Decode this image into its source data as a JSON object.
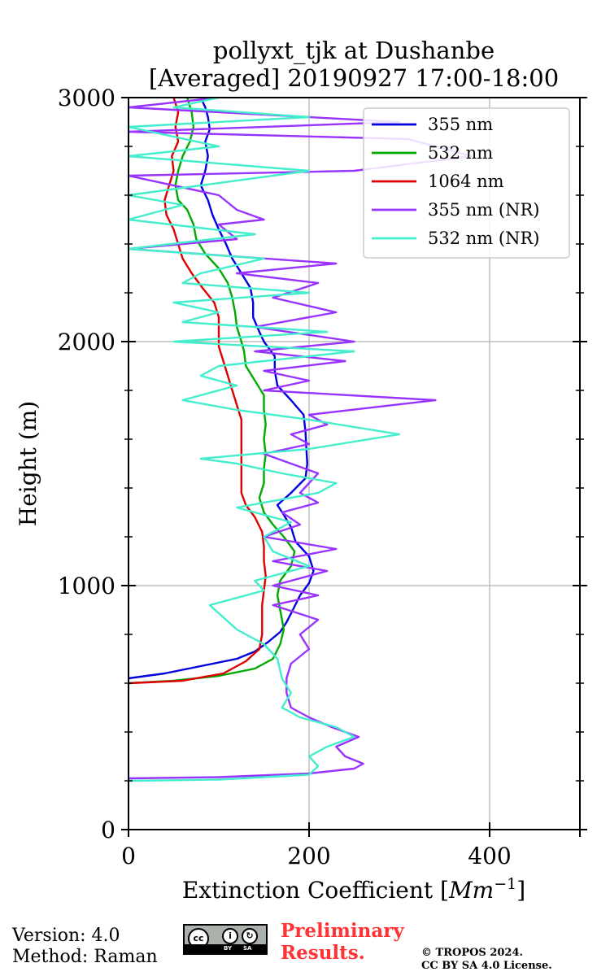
{
  "chart_data": {
    "type": "line",
    "title": "pollyxt_tjk at Dushanbe",
    "subtitle": "[Averaged] 20190927 17:00-18:00",
    "xlabel": "Extinction Coefficient",
    "xlabel_unit": "Mm",
    "xlabel_exp": "−1",
    "ylabel": "Height (m)",
    "xlim": [
      0,
      500
    ],
    "ylim": [
      0,
      3000
    ],
    "xticks": [
      0,
      200,
      400
    ],
    "yticks": [
      0,
      1000,
      2000,
      3000
    ],
    "xtick_labels": [
      "0",
      "200",
      "400"
    ],
    "ytick_labels": [
      "0",
      "1000",
      "2000",
      "3000"
    ],
    "grid": true,
    "legend_position": "top-right",
    "series": [
      {
        "name": "355 nm",
        "color": "#0000dd",
        "points": [
          [
            0,
            620
          ],
          [
            40,
            640
          ],
          [
            80,
            670
          ],
          [
            120,
            700
          ],
          [
            140,
            730
          ],
          [
            155,
            770
          ],
          [
            168,
            810
          ],
          [
            175,
            850
          ],
          [
            182,
            900
          ],
          [
            190,
            960
          ],
          [
            200,
            1010
          ],
          [
            205,
            1060
          ],
          [
            200,
            1120
          ],
          [
            185,
            1180
          ],
          [
            180,
            1240
          ],
          [
            172,
            1290
          ],
          [
            165,
            1330
          ],
          [
            180,
            1380
          ],
          [
            196,
            1440
          ],
          [
            198,
            1500
          ],
          [
            197,
            1560
          ],
          [
            196,
            1630
          ],
          [
            194,
            1700
          ],
          [
            180,
            1760
          ],
          [
            165,
            1820
          ],
          [
            162,
            1880
          ],
          [
            162,
            1940
          ],
          [
            150,
            2000
          ],
          [
            145,
            2040
          ],
          [
            138,
            2100
          ],
          [
            138,
            2160
          ],
          [
            135,
            2220
          ],
          [
            125,
            2280
          ],
          [
            115,
            2340
          ],
          [
            108,
            2400
          ],
          [
            100,
            2460
          ],
          [
            93,
            2520
          ],
          [
            88,
            2580
          ],
          [
            80,
            2640
          ],
          [
            85,
            2700
          ],
          [
            88,
            2760
          ],
          [
            85,
            2820
          ],
          [
            90,
            2870
          ],
          [
            88,
            2920
          ],
          [
            85,
            2960
          ],
          [
            80,
            3000
          ]
        ]
      },
      {
        "name": "532 nm",
        "color": "#00aa00",
        "points": [
          [
            0,
            600
          ],
          [
            50,
            610
          ],
          [
            100,
            630
          ],
          [
            140,
            660
          ],
          [
            160,
            700
          ],
          [
            168,
            760
          ],
          [
            172,
            820
          ],
          [
            168,
            900
          ],
          [
            165,
            960
          ],
          [
            168,
            1020
          ],
          [
            180,
            1080
          ],
          [
            184,
            1140
          ],
          [
            172,
            1200
          ],
          [
            160,
            1250
          ],
          [
            150,
            1300
          ],
          [
            145,
            1360
          ],
          [
            150,
            1420
          ],
          [
            150,
            1480
          ],
          [
            152,
            1540
          ],
          [
            150,
            1600
          ],
          [
            152,
            1660
          ],
          [
            150,
            1720
          ],
          [
            150,
            1780
          ],
          [
            140,
            1840
          ],
          [
            130,
            1900
          ],
          [
            128,
            1960
          ],
          [
            125,
            2000
          ],
          [
            120,
            2060
          ],
          [
            118,
            2120
          ],
          [
            115,
            2180
          ],
          [
            110,
            2240
          ],
          [
            100,
            2300
          ],
          [
            85,
            2360
          ],
          [
            75,
            2420
          ],
          [
            72,
            2480
          ],
          [
            65,
            2540
          ],
          [
            55,
            2580
          ],
          [
            52,
            2640
          ],
          [
            55,
            2700
          ],
          [
            60,
            2760
          ],
          [
            68,
            2820
          ],
          [
            72,
            2880
          ],
          [
            70,
            2940
          ],
          [
            65,
            3000
          ]
        ]
      },
      {
        "name": "1064 nm",
        "color": "#dd0000",
        "points": [
          [
            0,
            600
          ],
          [
            60,
            610
          ],
          [
            105,
            640
          ],
          [
            130,
            690
          ],
          [
            145,
            740
          ],
          [
            148,
            800
          ],
          [
            148,
            860
          ],
          [
            148,
            920
          ],
          [
            150,
            980
          ],
          [
            152,
            1040
          ],
          [
            150,
            1100
          ],
          [
            150,
            1160
          ],
          [
            148,
            1220
          ],
          [
            140,
            1280
          ],
          [
            130,
            1330
          ],
          [
            125,
            1380
          ],
          [
            125,
            1440
          ],
          [
            125,
            1500
          ],
          [
            125,
            1560
          ],
          [
            125,
            1620
          ],
          [
            125,
            1680
          ],
          [
            120,
            1740
          ],
          [
            115,
            1800
          ],
          [
            110,
            1860
          ],
          [
            105,
            1920
          ],
          [
            100,
            1980
          ],
          [
            100,
            2040
          ],
          [
            100,
            2100
          ],
          [
            95,
            2160
          ],
          [
            82,
            2220
          ],
          [
            70,
            2280
          ],
          [
            60,
            2340
          ],
          [
            55,
            2400
          ],
          [
            50,
            2460
          ],
          [
            42,
            2520
          ],
          [
            40,
            2580
          ],
          [
            45,
            2640
          ],
          [
            50,
            2700
          ],
          [
            48,
            2760
          ],
          [
            55,
            2820
          ],
          [
            52,
            2880
          ],
          [
            55,
            2940
          ],
          [
            50,
            3000
          ]
        ]
      },
      {
        "name": "355 nm (NR)",
        "color": "#9933ff",
        "points": [
          [
            0,
            210
          ],
          [
            100,
            215
          ],
          [
            200,
            230
          ],
          [
            250,
            250
          ],
          [
            260,
            270
          ],
          [
            240,
            300
          ],
          [
            230,
            340
          ],
          [
            255,
            380
          ],
          [
            225,
            420
          ],
          [
            200,
            460
          ],
          [
            180,
            500
          ],
          [
            175,
            560
          ],
          [
            175,
            620
          ],
          [
            180,
            680
          ],
          [
            200,
            740
          ],
          [
            190,
            800
          ],
          [
            210,
            860
          ],
          [
            160,
            920
          ],
          [
            210,
            960
          ],
          [
            160,
            1000
          ],
          [
            220,
            1060
          ],
          [
            160,
            1100
          ],
          [
            230,
            1150
          ],
          [
            150,
            1200
          ],
          [
            190,
            1250
          ],
          [
            170,
            1300
          ],
          [
            210,
            1340
          ],
          [
            190,
            1380
          ],
          [
            200,
            1420
          ],
          [
            210,
            1460
          ],
          [
            180,
            1500
          ],
          [
            150,
            1540
          ],
          [
            200,
            1580
          ],
          [
            180,
            1620
          ],
          [
            220,
            1660
          ],
          [
            200,
            1700
          ],
          [
            340,
            1760
          ],
          [
            150,
            1800
          ],
          [
            200,
            1840
          ],
          [
            150,
            1880
          ],
          [
            240,
            1920
          ],
          [
            140,
            1960
          ],
          [
            250,
            2000
          ],
          [
            140,
            2060
          ],
          [
            230,
            2120
          ],
          [
            160,
            2180
          ],
          [
            210,
            2240
          ],
          [
            120,
            2280
          ],
          [
            230,
            2320
          ],
          [
            0,
            2380
          ],
          [
            120,
            2420
          ],
          [
            100,
            2480
          ],
          [
            150,
            2500
          ],
          [
            120,
            2540
          ],
          [
            100,
            2600
          ],
          [
            0,
            2680
          ],
          [
            250,
            2700
          ],
          [
            380,
            2760
          ],
          [
            310,
            2830
          ],
          [
            0,
            2860
          ],
          [
            300,
            2900
          ],
          [
            0,
            2960
          ],
          [
            100,
            3000
          ]
        ]
      },
      {
        "name": "532 nm (NR)",
        "color": "#44eecc",
        "points": [
          [
            0,
            200
          ],
          [
            100,
            205
          ],
          [
            200,
            225
          ],
          [
            210,
            260
          ],
          [
            200,
            300
          ],
          [
            220,
            340
          ],
          [
            250,
            380
          ],
          [
            230,
            420
          ],
          [
            190,
            460
          ],
          [
            170,
            500
          ],
          [
            180,
            560
          ],
          [
            170,
            620
          ],
          [
            165,
            700
          ],
          [
            150,
            760
          ],
          [
            120,
            820
          ],
          [
            90,
            920
          ],
          [
            150,
            980
          ],
          [
            140,
            1020
          ],
          [
            200,
            1080
          ],
          [
            160,
            1140
          ],
          [
            150,
            1200
          ],
          [
            180,
            1260
          ],
          [
            120,
            1320
          ],
          [
            210,
            1380
          ],
          [
            230,
            1420
          ],
          [
            170,
            1460
          ],
          [
            120,
            1500
          ],
          [
            80,
            1520
          ],
          [
            200,
            1560
          ],
          [
            300,
            1620
          ],
          [
            200,
            1680
          ],
          [
            120,
            1720
          ],
          [
            60,
            1760
          ],
          [
            120,
            1820
          ],
          [
            80,
            1860
          ],
          [
            100,
            1900
          ],
          [
            250,
            1960
          ],
          [
            50,
            2000
          ],
          [
            220,
            2040
          ],
          [
            60,
            2080
          ],
          [
            100,
            2120
          ],
          [
            50,
            2160
          ],
          [
            200,
            2200
          ],
          [
            60,
            2240
          ],
          [
            80,
            2280
          ],
          [
            150,
            2340
          ],
          [
            0,
            2380
          ],
          [
            140,
            2440
          ],
          [
            0,
            2500
          ],
          [
            60,
            2560
          ],
          [
            0,
            2600
          ],
          [
            200,
            2700
          ],
          [
            0,
            2760
          ],
          [
            100,
            2800
          ],
          [
            0,
            2880
          ],
          [
            200,
            2920
          ],
          [
            50,
            2960
          ],
          [
            100,
            3000
          ]
        ]
      }
    ]
  },
  "footer": {
    "version": "Version: 4.0",
    "method": "Method: Raman",
    "preliminary_line1": "Preliminary",
    "preliminary_line2": "Results.",
    "copyright_line1": "© TROPOS 2024.",
    "copyright_line2": "CC BY SA 4.0 License.",
    "cc_badge": {
      "cc": "cc",
      "by": "BY",
      "sa": "SA"
    }
  }
}
